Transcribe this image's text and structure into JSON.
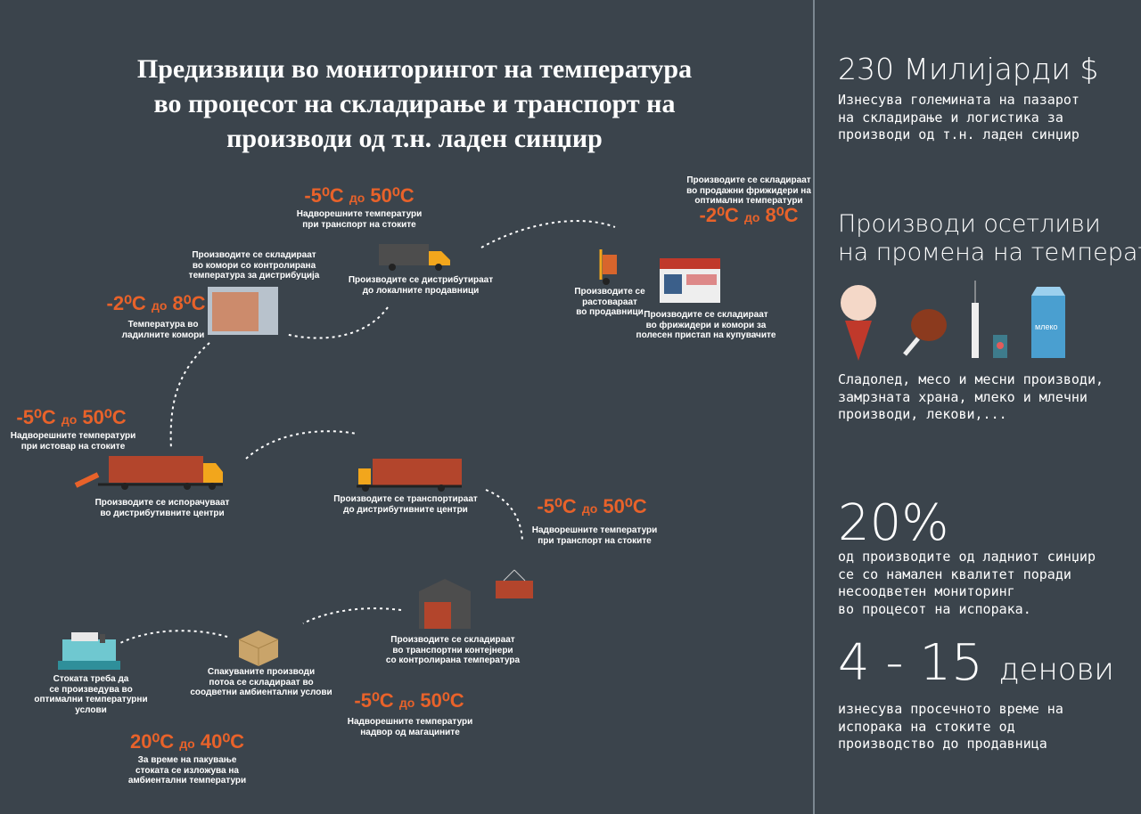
{
  "title": [
    "Предизвици во мониторингот на температура",
    "во процесот на складирање и транспорт на",
    "производи од т.н. ладен синџир"
  ],
  "temps": [
    {
      "low": "-5⁰C",
      "sep": "до",
      "high": "50⁰C"
    },
    {
      "low": "-2⁰C",
      "sep": "до",
      "high": "8⁰C"
    },
    {
      "low": "-2⁰C",
      "sep": "до",
      "high": "8⁰C"
    },
    {
      "low": "-5⁰C",
      "sep": "до",
      "high": "50⁰C"
    },
    {
      "low": "-5⁰C",
      "sep": "до",
      "high": "50⁰C"
    },
    {
      "low": "-5⁰C",
      "sep": "до",
      "high": "50⁰C"
    },
    {
      "low": "20⁰C",
      "sep": "до",
      "high": "40⁰C"
    }
  ],
  "captions": [
    [
      "Надворешните температури",
      "при транспорт на стоките"
    ],
    [
      "Производите се дистрибутираат",
      "до локалните продавници"
    ],
    [
      "Производите се складираат",
      "во продажни фрижидери на",
      "оптимални температури"
    ],
    [
      "Производите се",
      "растовараат",
      "во продавници"
    ],
    [
      "Производите се складираат",
      "во фрижидери и комори за",
      "полесен пристап на купувачите"
    ],
    [
      "Производите се складираат",
      "во комори со контролирана",
      "температура за дистрибуција"
    ],
    [
      "Температура во",
      "ладилните комори"
    ],
    [
      "Надворешните температури",
      "при истовар на стоките"
    ],
    [
      "Производите се испорачуваат",
      "во дистрибутивните центри"
    ],
    [
      "Производите се транспортираат",
      "до дистрибутивните центри"
    ],
    [
      "Надворешните температури",
      "при транспорт на стоките"
    ],
    [
      "Производите се складираат",
      "во транспортни контејнери",
      "со контролирана температура"
    ],
    [
      "Стоката треба да",
      "се произведува во",
      "оптимални температурни",
      "услови"
    ],
    [
      "Спакуваните производи",
      "потоа се складираат во",
      "соодветни амбиентални услови"
    ],
    [
      "Надворешните температури",
      "надвор од магацините"
    ],
    [
      "За време на пакување",
      "стоката се изложува на",
      "амбиентални температури"
    ]
  ],
  "stats": {
    "market": {
      "value": "230 Милијарди $",
      "lines": [
        "Изнесува големината на пазарот",
        "на складирање и логистика за",
        "производи од т.н. ладен синџир"
      ]
    },
    "sensitive": {
      "heading": [
        "Производи осетливи",
        "на промена на температура"
      ],
      "icon_label": "млеко",
      "lines": [
        "Сладолед, месо и месни производи,",
        "замрзната храна, млеко и млечни",
        "производи, лекови,..."
      ]
    },
    "quality": {
      "value": "20%",
      "lines": [
        "од производите од ладниот синџир",
        "се со намален квалитет поради",
        "несоодветен мониторинг",
        "во процесот на испорака."
      ]
    },
    "time": {
      "value": "4 - 15",
      "unit": "денови",
      "lines": [
        "изнесува просечното време на",
        "испорака на стоките од",
        "производство до продавница"
      ]
    }
  }
}
